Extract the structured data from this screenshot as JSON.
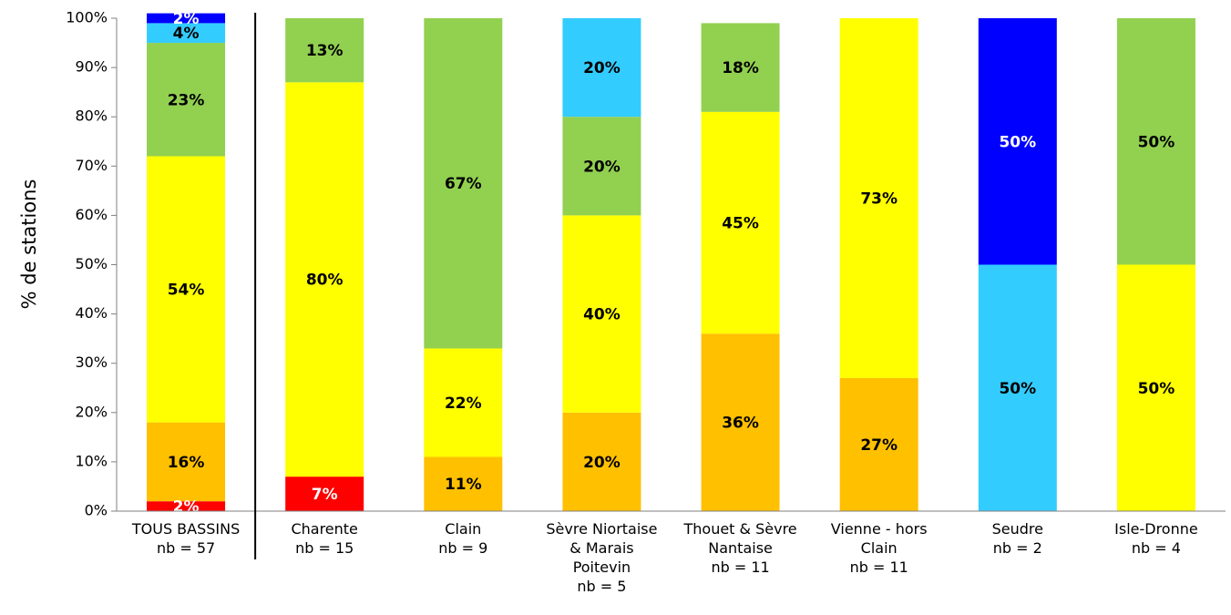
{
  "chart_data": {
    "type": "bar",
    "stacked": true,
    "percent": true,
    "ylabel": "% de stations",
    "ylim": [
      0,
      100
    ],
    "yticks": [
      "0%",
      "10%",
      "20%",
      "30%",
      "40%",
      "50%",
      "60%",
      "70%",
      "80%",
      "90%",
      "100%"
    ],
    "grid": false,
    "legend": "none",
    "categories": [
      [
        "TOUS BASSINS",
        "nb = 57"
      ],
      [
        "Charente",
        "nb = 15"
      ],
      [
        "Clain",
        "nb = 9"
      ],
      [
        "Sèvre Niortaise",
        "& Marais",
        "Poitevin",
        "nb = 5"
      ],
      [
        "Thouet & Sèvre",
        "Nantaise",
        "nb = 11"
      ],
      [
        "Vienne - hors",
        "Clain",
        "nb = 11"
      ],
      [
        "Seudre",
        "nb = 2"
      ],
      [
        "Isle-Dronne",
        "nb = 4"
      ]
    ],
    "separator_after_category": 0,
    "series": [
      {
        "color": "#ff0000",
        "label_color": "#ffffff",
        "values": [
          2,
          7,
          0,
          0,
          0,
          0,
          0,
          0
        ],
        "labels": [
          "2%",
          "7%",
          "",
          "",
          "",
          "",
          "",
          ""
        ]
      },
      {
        "color": "#ffc000",
        "label_color": "#000000",
        "values": [
          16,
          0,
          11,
          20,
          36,
          27,
          0,
          0
        ],
        "labels": [
          "16%",
          "",
          "11%",
          "20%",
          "36%",
          "27%",
          "",
          ""
        ]
      },
      {
        "color": "#ffff00",
        "label_color": "#000000",
        "values": [
          54,
          80,
          22,
          40,
          45,
          73,
          0,
          50
        ],
        "labels": [
          "54%",
          "80%",
          "22%",
          "40%",
          "45%",
          "73%",
          "",
          "50%"
        ]
      },
      {
        "color": "#92d050",
        "label_color": "#000000",
        "values": [
          23,
          13,
          67,
          20,
          18,
          0,
          0,
          50
        ],
        "labels": [
          "23%",
          "13%",
          "67%",
          "20%",
          "18%",
          "",
          "",
          "50%"
        ]
      },
      {
        "color": "#33ccff",
        "label_color": "#000000",
        "values": [
          4,
          0,
          0,
          20,
          0,
          0,
          50,
          0
        ],
        "labels": [
          "4%",
          "",
          "",
          "20%",
          "",
          "",
          "50%",
          ""
        ]
      },
      {
        "color": "#0000ff",
        "label_color": "#ffffff",
        "values": [
          2,
          0,
          0,
          0,
          0,
          0,
          50,
          0
        ],
        "labels": [
          "2%",
          "",
          "",
          "",
          "",
          "",
          "50%",
          ""
        ]
      }
    ]
  }
}
